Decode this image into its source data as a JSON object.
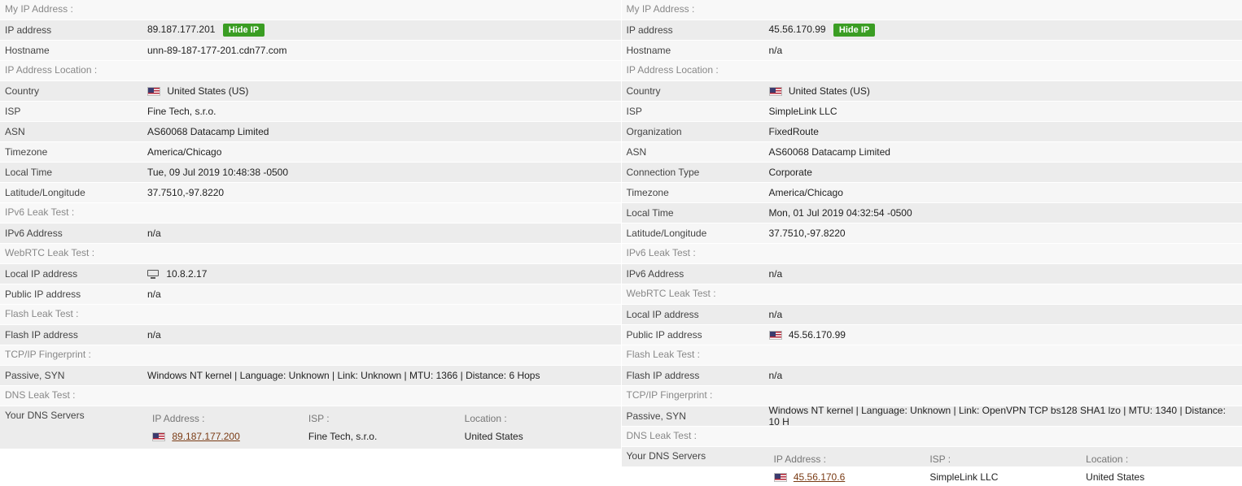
{
  "colors": {
    "zebra_a": "#ececec",
    "zebra_b": "#f6f6f6",
    "section_bg": "#f8f8f8",
    "section_text": "#888888",
    "hide_ip_bg": "#3a9d23",
    "link_color": "#7a3b14"
  },
  "left": {
    "sections": {
      "my_ip": "My IP Address :",
      "location": "IP Address Location :",
      "ipv6": "IPv6 Leak Test :",
      "webrtc": "WebRTC Leak Test :",
      "flash": "Flash Leak Test :",
      "tcp": "TCP/IP Fingerprint :",
      "dns": "DNS Leak Test :"
    },
    "labels": {
      "ip_address": "IP address",
      "hostname": "Hostname",
      "country": "Country",
      "isp": "ISP",
      "asn": "ASN",
      "timezone": "Timezone",
      "local_time": "Local Time",
      "latlon": "Latitude/Longitude",
      "ipv6_addr": "IPv6 Address",
      "local_ip": "Local IP address",
      "public_ip": "Public IP address",
      "flash_ip": "Flash IP address",
      "passive": "Passive, SYN",
      "dns_servers": "Your DNS Servers"
    },
    "values": {
      "ip_address": "89.187.177.201",
      "hide_ip": "Hide IP",
      "hostname": "unn-89-187-177-201.cdn77.com",
      "country": "United States (US)",
      "isp": "Fine Tech, s.r.o.",
      "asn": "AS60068 Datacamp Limited",
      "timezone": "America/Chicago",
      "local_time": "Tue, 09 Jul 2019 10:48:38 -0500",
      "latlon": "37.7510,-97.8220",
      "ipv6_addr": "n/a",
      "local_ip": "10.8.2.17",
      "public_ip": "n/a",
      "flash_ip": "n/a",
      "passive": "Windows NT kernel | Language: Unknown | Link: Unknown | MTU: 1366 | Distance: 6 Hops"
    },
    "dns": {
      "headers": {
        "ip": "IP Address :",
        "isp": "ISP :",
        "location": "Location :"
      },
      "row": {
        "ip": "89.187.177.200",
        "isp": "Fine Tech, s.r.o.",
        "location": "United States"
      }
    }
  },
  "right": {
    "sections": {
      "my_ip": "My IP Address :",
      "location": "IP Address Location :",
      "ipv6": "IPv6 Leak Test :",
      "webrtc": "WebRTC Leak Test :",
      "flash": "Flash Leak Test :",
      "tcp": "TCP/IP Fingerprint :",
      "dns": "DNS Leak Test :"
    },
    "labels": {
      "ip_address": "IP address",
      "hostname": "Hostname",
      "country": "Country",
      "isp": "ISP",
      "organization": "Organization",
      "asn": "ASN",
      "conn_type": "Connection Type",
      "timezone": "Timezone",
      "local_time": "Local Time",
      "latlon": "Latitude/Longitude",
      "ipv6_addr": "IPv6 Address",
      "local_ip": "Local IP address",
      "public_ip": "Public IP address",
      "flash_ip": "Flash IP address",
      "passive": "Passive, SYN",
      "dns_servers": "Your DNS Servers"
    },
    "values": {
      "ip_address": "45.56.170.99",
      "hide_ip": "Hide IP",
      "hostname": "n/a",
      "country": "United States (US)",
      "isp": "SimpleLink LLC",
      "organization": "FixedRoute",
      "asn": "AS60068 Datacamp Limited",
      "conn_type": "Corporate",
      "timezone": "America/Chicago",
      "local_time": "Mon, 01 Jul 2019 04:32:54 -0500",
      "latlon": "37.7510,-97.8220",
      "ipv6_addr": "n/a",
      "local_ip": "n/a",
      "public_ip": "45.56.170.99",
      "flash_ip": "n/a",
      "passive": "Windows NT kernel | Language: Unknown | Link: OpenVPN TCP bs128 SHA1 lzo | MTU: 1340 | Distance: 10 H"
    },
    "dns": {
      "headers": {
        "ip": "IP Address :",
        "isp": "ISP :",
        "location": "Location :"
      },
      "row": {
        "ip": "45.56.170.6",
        "isp": "SimpleLink LLC",
        "location": "United States"
      }
    }
  }
}
